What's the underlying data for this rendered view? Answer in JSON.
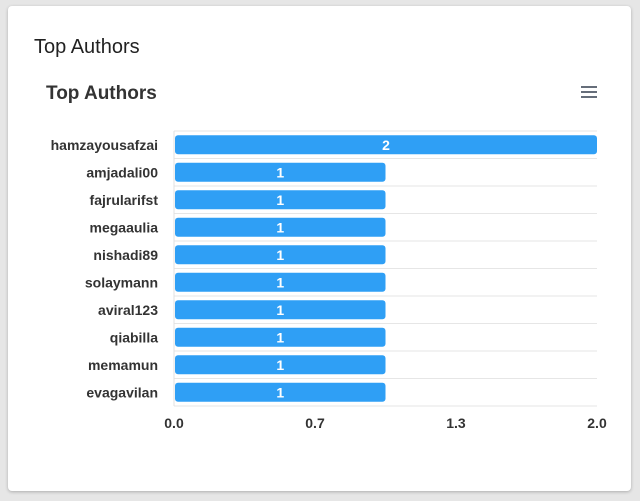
{
  "card": {
    "title": "Top Authors"
  },
  "menu": {
    "icon": "hamburger-menu-icon"
  },
  "chart_data": {
    "type": "bar",
    "orientation": "horizontal",
    "title": "Top Authors",
    "xlabel": "",
    "ylabel": "",
    "categories": [
      "hamzayousafzai",
      "amjadali00",
      "fajrularifst",
      "megaaulia",
      "nishadi89",
      "solaymann",
      "aviral123",
      "qiabilla",
      "memamun",
      "evagavilan"
    ],
    "values": [
      2,
      1,
      1,
      1,
      1,
      1,
      1,
      1,
      1,
      1
    ],
    "xlim": [
      0,
      2
    ],
    "ticks": [
      "0.0",
      "0.7",
      "1.3",
      "2.0"
    ],
    "tick_values": [
      0,
      0.6667,
      1.3333,
      2
    ],
    "bar_color": "#2f9ff5",
    "grid": true,
    "data_labels": true,
    "legend": "none"
  }
}
